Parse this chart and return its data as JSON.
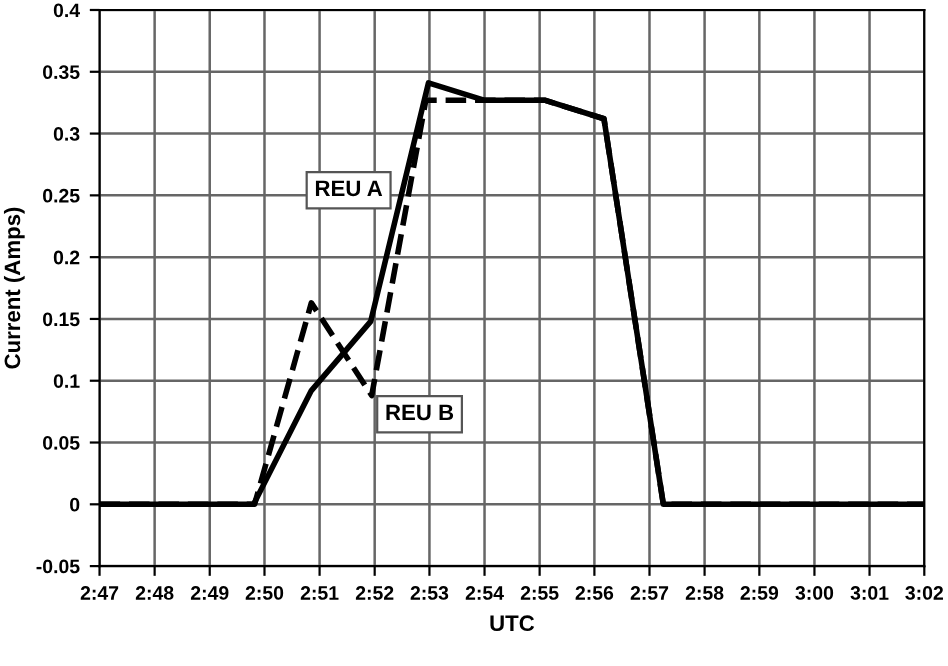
{
  "chart_data": {
    "type": "line",
    "xlabel": "UTC",
    "ylabel": "Current (Amps)",
    "series": [
      {
        "name": "REU A",
        "color": "#000000",
        "line_style": "solid",
        "x": [
          2.7833,
          2.83,
          2.8475,
          2.8655,
          2.883,
          2.8998,
          2.9182,
          2.9362,
          2.9542,
          3.0333
        ],
        "values": [
          0,
          0,
          0.092,
          0.148,
          0.341,
          0.327,
          0.327,
          0.312,
          0,
          0
        ]
      },
      {
        "name": "REU B",
        "color": "#000000",
        "line_style": "dashed",
        "x": [
          2.7833,
          2.8303,
          2.8475,
          2.8658,
          2.8822,
          2.8993,
          2.9182,
          2.9362,
          2.9542,
          3.0333
        ],
        "values": [
          0,
          0,
          0.163,
          0.088,
          0.327,
          0.327,
          0.327,
          0.312,
          0,
          0
        ]
      }
    ],
    "xlim": [
      2.7833,
      3.0333
    ],
    "xticks": [
      {
        "value": 2.7833,
        "label": "2:47"
      },
      {
        "value": 2.8,
        "label": "2:48"
      },
      {
        "value": 2.8167,
        "label": "2:49"
      },
      {
        "value": 2.8333,
        "label": "2:50"
      },
      {
        "value": 2.85,
        "label": "2:51"
      },
      {
        "value": 2.8667,
        "label": "2:52"
      },
      {
        "value": 2.8833,
        "label": "2:53"
      },
      {
        "value": 2.9,
        "label": "2:54"
      },
      {
        "value": 2.9167,
        "label": "2:55"
      },
      {
        "value": 2.9333,
        "label": "2:56"
      },
      {
        "value": 2.95,
        "label": "2:57"
      },
      {
        "value": 2.9667,
        "label": "2:58"
      },
      {
        "value": 2.9833,
        "label": "2:59"
      },
      {
        "value": 3.0,
        "label": "3:00"
      },
      {
        "value": 3.0167,
        "label": "3:01"
      },
      {
        "value": 3.0333,
        "label": "3:02"
      }
    ],
    "ylim": [
      -0.05,
      0.4
    ],
    "yticks": [
      -0.05,
      0,
      0.05,
      0.1,
      0.15,
      0.2,
      0.25,
      0.3,
      0.35,
      0.4
    ],
    "grid": true,
    "legend": false,
    "marker": "none"
  }
}
